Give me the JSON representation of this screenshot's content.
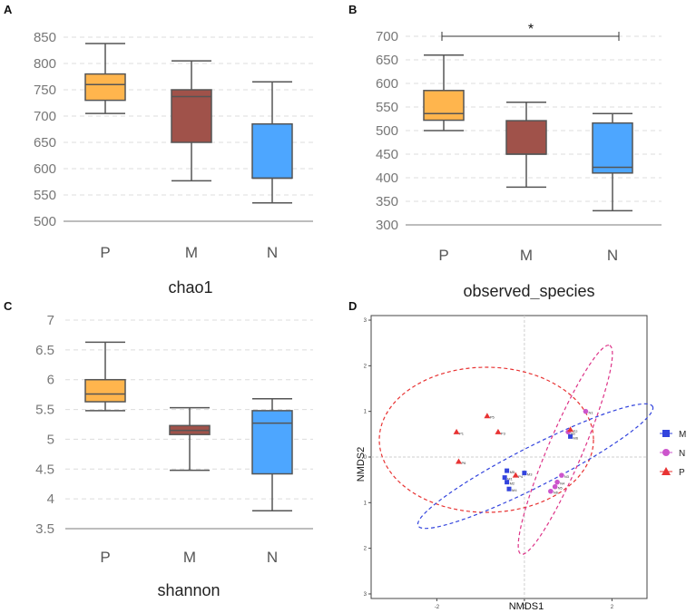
{
  "colors": {
    "P": "#FFB54D",
    "M": "#A0524A",
    "N": "#4DA6FF",
    "legend_M": "#3344dd",
    "legend_N": "#cc55cc",
    "legend_P": "#e83333"
  },
  "chart_data": [
    {
      "panel": "A",
      "type": "boxplot",
      "xlabel": "chao1",
      "categories": [
        "P",
        "M",
        "N"
      ],
      "ylim": [
        500,
        850
      ],
      "yticks": [
        500,
        550,
        600,
        650,
        700,
        750,
        800,
        850
      ],
      "boxes": [
        {
          "name": "P",
          "min": 705,
          "q1": 730,
          "median": 760,
          "q3": 780,
          "max": 838
        },
        {
          "name": "M",
          "min": 577,
          "q1": 650,
          "median": 737,
          "q3": 750,
          "max": 805
        },
        {
          "name": "N",
          "min": 535,
          "q1": 582,
          "median": 582,
          "q3": 685,
          "max": 765
        }
      ]
    },
    {
      "panel": "B",
      "type": "boxplot",
      "xlabel": "observed_species",
      "categories": [
        "P",
        "M",
        "N"
      ],
      "ylim": [
        300,
        700
      ],
      "yticks": [
        300,
        350,
        400,
        450,
        500,
        550,
        600,
        650,
        700
      ],
      "annotation": "*",
      "boxes": [
        {
          "name": "P",
          "min": 500,
          "q1": 522,
          "median": 536,
          "q3": 585,
          "max": 660
        },
        {
          "name": "M",
          "min": 380,
          "q1": 450,
          "median": 450,
          "q3": 521,
          "max": 560
        },
        {
          "name": "N",
          "min": 330,
          "q1": 410,
          "median": 422,
          "q3": 516,
          "max": 536
        }
      ]
    },
    {
      "panel": "C",
      "type": "boxplot",
      "xlabel": "shannon",
      "categories": [
        "P",
        "M",
        "N"
      ],
      "ylim": [
        3.5,
        7
      ],
      "yticks": [
        "3.5",
        "4",
        "4.5",
        "5",
        "5.5",
        "6",
        "6.5",
        "7"
      ],
      "boxes": [
        {
          "name": "P",
          "min": 5.48,
          "q1": 5.63,
          "median": 5.76,
          "q3": 6.0,
          "max": 6.63
        },
        {
          "name": "M",
          "min": 4.48,
          "q1": 5.08,
          "median": 5.15,
          "q3": 5.23,
          "max": 5.53
        },
        {
          "name": "N",
          "min": 3.8,
          "q1": 4.42,
          "median": 5.27,
          "q3": 5.48,
          "max": 5.68
        }
      ]
    },
    {
      "panel": "D",
      "type": "scatter",
      "xlabel": "NMDS1",
      "ylabel": "NMDS2",
      "xlim": [
        -3.5,
        2.8
      ],
      "ylim": [
        -3.1,
        3.1
      ],
      "xticks": [
        "-2",
        "0",
        "2"
      ],
      "yticks": [
        "3",
        "2",
        "1",
        "0",
        "1",
        "2",
        "3"
      ],
      "legend": [
        "M",
        "N",
        "P"
      ],
      "series": [
        {
          "name": "M",
          "points": [
            [
              -0.4,
              -0.3
            ],
            [
              -0.45,
              -0.45
            ],
            [
              -0.4,
              -0.55
            ],
            [
              -0.35,
              -0.7
            ],
            [
              0.0,
              -0.35
            ],
            [
              1.05,
              0.45
            ]
          ],
          "labels": [
            "M5",
            "M1",
            "M2",
            "M4",
            "M3",
            "M6"
          ]
        },
        {
          "name": "N",
          "points": [
            [
              1.4,
              1.0
            ],
            [
              1.0,
              0.55
            ],
            [
              0.85,
              -0.4
            ],
            [
              0.75,
              -0.55
            ],
            [
              0.7,
              -0.65
            ],
            [
              0.6,
              -0.75
            ]
          ],
          "labels": [
            "N1",
            "N2",
            "N3",
            "N4",
            "N5",
            "N6"
          ]
        },
        {
          "name": "P",
          "points": [
            [
              -1.55,
              0.55
            ],
            [
              -0.85,
              0.9
            ],
            [
              -0.6,
              0.55
            ],
            [
              -1.5,
              -0.1
            ],
            [
              -0.2,
              -0.4
            ],
            [
              1.05,
              0.6
            ]
          ],
          "labels": [
            "P1",
            "P5",
            "P3",
            "P6",
            "P4",
            "P2"
          ]
        }
      ]
    }
  ]
}
